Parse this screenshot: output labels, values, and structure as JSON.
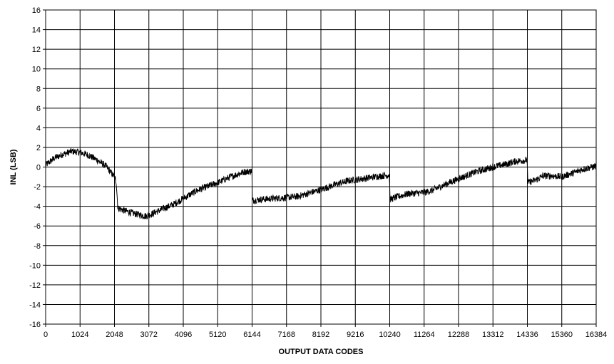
{
  "chart_data": {
    "type": "line",
    "title": "",
    "xlabel": "OUTPUT DATA CODES",
    "ylabel": "INL (LSB)",
    "xlim": [
      0,
      16384
    ],
    "ylim": [
      -16,
      16
    ],
    "grid": true,
    "legend": "none",
    "x_ticks": [
      0,
      1024,
      2048,
      3072,
      4096,
      5120,
      6144,
      7168,
      8192,
      9216,
      10240,
      11264,
      12288,
      13312,
      14336,
      15360,
      16384
    ],
    "y_ticks": [
      16,
      14,
      12,
      10,
      8,
      6,
      4,
      2,
      0,
      -2,
      -4,
      -6,
      -8,
      -10,
      -12,
      -14,
      -16
    ],
    "series": [
      {
        "name": "",
        "color": "#000000",
        "x": [
          0,
          256,
          512,
          768,
          1024,
          1280,
          1536,
          1792,
          2048,
          2100,
          2150,
          2400,
          2700,
          3000,
          3072,
          3400,
          3800,
          4096,
          4500,
          4800,
          5120,
          5500,
          5900,
          6140,
          6150,
          6400,
          6800,
          7168,
          7500,
          7800,
          8192,
          8600,
          9000,
          9216,
          9600,
          10000,
          10230,
          10250,
          10500,
          10800,
          11264,
          11500,
          12000,
          12288,
          12800,
          13312,
          13700,
          14000,
          14330,
          14350,
          14600,
          14800,
          15100,
          15360,
          15700,
          16000,
          16384
        ],
        "y": [
          0.2,
          0.9,
          1.3,
          1.6,
          1.5,
          1.2,
          0.7,
          0.1,
          -1.0,
          -1.5,
          -4.2,
          -4.5,
          -4.8,
          -5.0,
          -4.9,
          -4.4,
          -3.8,
          -3.2,
          -2.4,
          -2.0,
          -1.6,
          -1.0,
          -0.5,
          -0.4,
          -3.4,
          -3.3,
          -3.2,
          -3.1,
          -3.0,
          -2.7,
          -2.3,
          -1.8,
          -1.4,
          -1.3,
          -1.1,
          -0.9,
          -0.8,
          -3.3,
          -3.0,
          -2.7,
          -2.6,
          -2.4,
          -1.6,
          -1.2,
          -0.5,
          0.0,
          0.3,
          0.6,
          0.7,
          -1.6,
          -1.3,
          -0.9,
          -0.9,
          -1.0,
          -0.6,
          -0.2,
          0.1
        ],
        "noise": 0.35
      }
    ]
  }
}
